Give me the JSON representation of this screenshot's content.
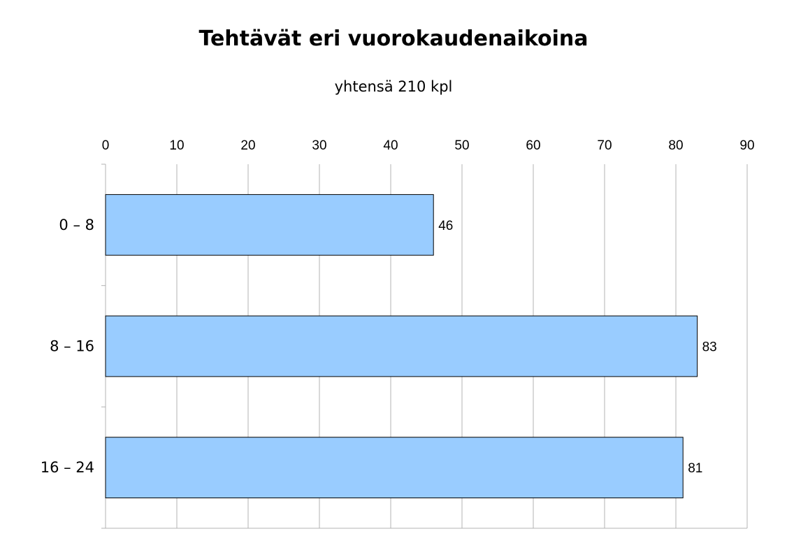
{
  "chart_data": {
    "type": "bar",
    "orientation": "horizontal",
    "title": "Tehtävät eri vuorokaudenaikoina",
    "subtitle": "yhtensä 210 kpl",
    "categories": [
      "0 – 8",
      "8 – 16",
      "16 – 24"
    ],
    "values": [
      46,
      83,
      81
    ],
    "x_ticks": [
      0,
      10,
      20,
      30,
      40,
      50,
      60,
      70,
      80,
      90
    ],
    "xlim": [
      0,
      90
    ],
    "x_axis_position": "top",
    "grid": true,
    "legend": "none",
    "colors": {
      "bar_fill": "#99ccff",
      "bar_stroke": "#000000",
      "grid": "#b3b3b3"
    }
  }
}
